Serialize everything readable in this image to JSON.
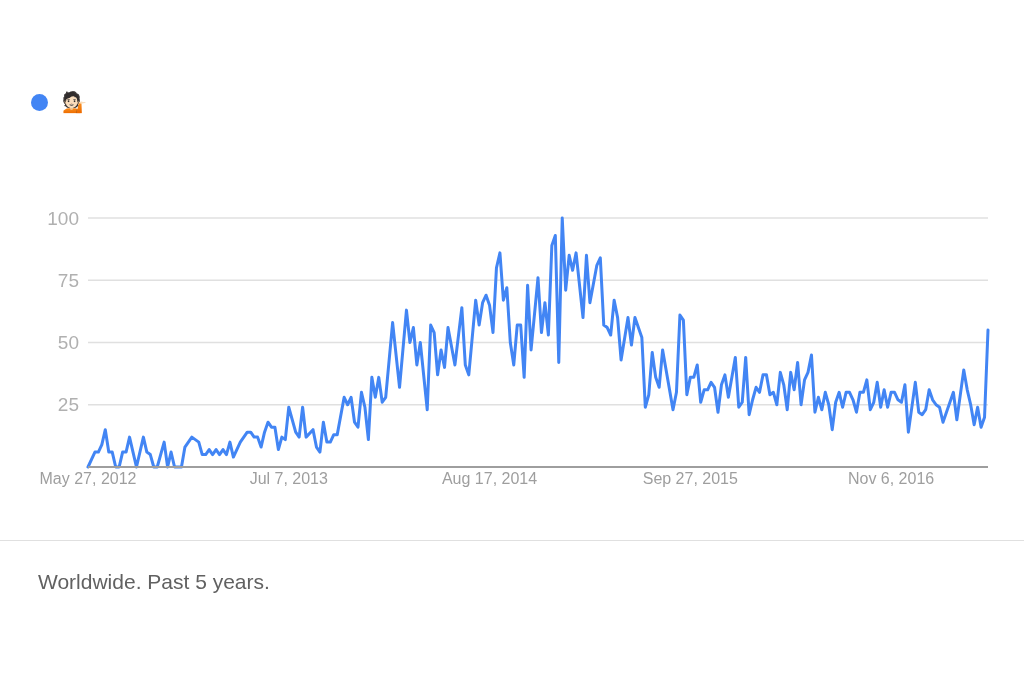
{
  "chart_data": {
    "type": "line",
    "annotations": [
      "Worldwide. Past 5 years."
    ],
    "legend": "top left",
    "grid": "y",
    "xlim": [
      "2012-05-27",
      "2017-05-21"
    ],
    "xticks": [
      {
        "value": "2012-05-27",
        "label": "May 27, 2012"
      },
      {
        "value": "2013-07-07",
        "label": "Jul 7, 2013"
      },
      {
        "value": "2014-08-17",
        "label": "Aug 17, 2014"
      },
      {
        "value": "2015-09-27",
        "label": "Sep 27, 2015"
      },
      {
        "value": "2016-11-06",
        "label": "Nov 6, 2016"
      }
    ],
    "ylim": [
      0,
      100
    ],
    "yticks": [
      25,
      50,
      75,
      100
    ],
    "x": [
      "2012-05-27",
      "2012-06-10",
      "2012-06-17",
      "2012-06-24",
      "2012-07-01",
      "2012-07-08",
      "2012-07-15",
      "2012-07-22",
      "2012-07-29",
      "2012-08-05",
      "2012-08-12",
      "2012-08-19",
      "2012-08-26",
      "2012-09-02",
      "2012-09-16",
      "2012-09-23",
      "2012-09-30",
      "2012-10-07",
      "2012-10-14",
      "2012-10-28",
      "2012-11-04",
      "2012-11-11",
      "2012-11-18",
      "2012-12-02",
      "2012-12-09",
      "2012-12-23",
      "2013-01-06",
      "2013-01-13",
      "2013-01-20",
      "2013-01-27",
      "2013-02-03",
      "2013-02-10",
      "2013-02-17",
      "2013-02-24",
      "2013-03-03",
      "2013-03-10",
      "2013-03-17",
      "2013-03-31",
      "2013-04-14",
      "2013-04-21",
      "2013-04-28",
      "2013-05-05",
      "2013-05-12",
      "2013-05-19",
      "2013-05-26",
      "2013-06-02",
      "2013-06-09",
      "2013-06-16",
      "2013-06-23",
      "2013-06-30",
      "2013-07-07",
      "2013-07-21",
      "2013-07-28",
      "2013-08-04",
      "2013-08-11",
      "2013-08-25",
      "2013-09-01",
      "2013-09-08",
      "2013-09-15",
      "2013-09-22",
      "2013-09-29",
      "2013-10-06",
      "2013-10-13",
      "2013-10-27",
      "2013-11-03",
      "2013-11-10",
      "2013-11-17",
      "2013-11-24",
      "2013-12-01",
      "2013-12-08",
      "2013-12-15",
      "2013-12-22",
      "2013-12-29",
      "2014-01-05",
      "2014-01-12",
      "2014-01-19",
      "2014-02-02",
      "2014-02-16",
      "2014-03-02",
      "2014-03-09",
      "2014-03-16",
      "2014-03-23",
      "2014-03-30",
      "2014-04-13",
      "2014-04-20",
      "2014-04-27",
      "2014-05-04",
      "2014-05-11",
      "2014-05-18",
      "2014-05-25",
      "2014-06-08",
      "2014-06-22",
      "2014-06-29",
      "2014-07-06",
      "2014-07-20",
      "2014-07-27",
      "2014-08-03",
      "2014-08-10",
      "2014-08-17",
      "2014-08-24",
      "2014-08-31",
      "2014-09-07",
      "2014-09-14",
      "2014-09-21",
      "2014-09-28",
      "2014-10-05",
      "2014-10-12",
      "2014-10-19",
      "2014-10-26",
      "2014-11-02",
      "2014-11-09",
      "2014-11-23",
      "2014-11-30",
      "2014-12-07",
      "2014-12-14",
      "2014-12-21",
      "2014-12-28",
      "2015-01-04",
      "2015-01-11",
      "2015-01-18",
      "2015-01-25",
      "2015-02-01",
      "2015-02-08",
      "2015-02-22",
      "2015-03-01",
      "2015-03-08",
      "2015-03-22",
      "2015-03-29",
      "2015-04-05",
      "2015-04-12",
      "2015-04-19",
      "2015-04-26",
      "2015-05-03",
      "2015-05-10",
      "2015-05-24",
      "2015-05-31",
      "2015-06-07",
      "2015-06-21",
      "2015-06-28",
      "2015-07-05",
      "2015-07-12",
      "2015-07-19",
      "2015-07-26",
      "2015-08-02",
      "2015-08-16",
      "2015-08-23",
      "2015-08-30",
      "2015-09-06",
      "2015-09-13",
      "2015-09-20",
      "2015-09-27",
      "2015-10-04",
      "2015-10-11",
      "2015-10-18",
      "2015-10-25",
      "2015-11-01",
      "2015-11-08",
      "2015-11-15",
      "2015-11-22",
      "2015-11-29",
      "2015-12-06",
      "2015-12-13",
      "2015-12-27",
      "2016-01-03",
      "2016-01-10",
      "2016-01-17",
      "2016-01-24",
      "2016-01-31",
      "2016-02-07",
      "2016-02-14",
      "2016-02-21",
      "2016-02-28",
      "2016-03-06",
      "2016-03-13",
      "2016-03-20",
      "2016-03-27",
      "2016-04-03",
      "2016-04-10",
      "2016-04-17",
      "2016-04-24",
      "2016-05-01",
      "2016-05-08",
      "2016-05-15",
      "2016-05-22",
      "2016-05-29",
      "2016-06-05",
      "2016-06-12",
      "2016-06-19",
      "2016-06-26",
      "2016-07-03",
      "2016-07-10",
      "2016-07-17",
      "2016-07-24",
      "2016-07-31",
      "2016-08-07",
      "2016-08-14",
      "2016-08-21",
      "2016-08-28",
      "2016-09-04",
      "2016-09-11",
      "2016-09-18",
      "2016-09-25",
      "2016-10-02",
      "2016-10-09",
      "2016-10-16",
      "2016-10-23",
      "2016-10-30",
      "2016-11-06",
      "2016-11-13",
      "2016-11-20",
      "2016-11-27",
      "2016-12-04",
      "2016-12-11",
      "2016-12-25",
      "2017-01-01",
      "2017-01-08",
      "2017-01-15",
      "2017-01-22",
      "2017-01-29",
      "2017-02-05",
      "2017-02-12",
      "2017-02-19",
      "2017-02-26",
      "2017-03-12",
      "2017-03-19",
      "2017-04-02",
      "2017-04-09",
      "2017-04-16",
      "2017-04-23",
      "2017-04-30",
      "2017-05-07",
      "2017-05-14",
      "2017-05-21"
    ],
    "series": [
      {
        "name": "💁🏻",
        "color": "#4285f4",
        "values": [
          0,
          6,
          6,
          9,
          15,
          6,
          6,
          0,
          0,
          6,
          6,
          12,
          6,
          0,
          12,
          6,
          5,
          0,
          0,
          10,
          0,
          6,
          0,
          0,
          8,
          12,
          10,
          5,
          5,
          7,
          5,
          7,
          5,
          7,
          5,
          10,
          4,
          10,
          14,
          14,
          12,
          12,
          8,
          14,
          18,
          16,
          16,
          7,
          12,
          11,
          24,
          14,
          12,
          24,
          12,
          15,
          8,
          6,
          18,
          10,
          10,
          13,
          13,
          28,
          25,
          28,
          18,
          16,
          30,
          24,
          11,
          36,
          28,
          36,
          26,
          28,
          58,
          32,
          63,
          50,
          56,
          41,
          50,
          23,
          57,
          54,
          37,
          47,
          40,
          56,
          41,
          64,
          41,
          37,
          67,
          57,
          66,
          69,
          65,
          54,
          80,
          86,
          67,
          72,
          50,
          41,
          57,
          57,
          36,
          73,
          47,
          76,
          54,
          66,
          53,
          89,
          93,
          42,
          100,
          71,
          85,
          79,
          86,
          60,
          85,
          66,
          81,
          84,
          57,
          56,
          53,
          67,
          60,
          43,
          60,
          49,
          60,
          52,
          24,
          29,
          46,
          36,
          32,
          47,
          31,
          23,
          30,
          61,
          59,
          29,
          36,
          36,
          41,
          26,
          31,
          31,
          34,
          32,
          22,
          33,
          37,
          28,
          44,
          24,
          26,
          44,
          21,
          27,
          32,
          30,
          37,
          37,
          29,
          30,
          25,
          38,
          33,
          23,
          38,
          31,
          42,
          25,
          35,
          38,
          45,
          22,
          28,
          23,
          30,
          25,
          15,
          26,
          30,
          24,
          30,
          30,
          27,
          22,
          30,
          30,
          35,
          23,
          26,
          34,
          24,
          31,
          24,
          30,
          30,
          27,
          26,
          33,
          14,
          34,
          22,
          21,
          23,
          31,
          27,
          25,
          24,
          18,
          22,
          30,
          19,
          39,
          31,
          25,
          17,
          24,
          16,
          20,
          55
        ]
      }
    ]
  }
}
